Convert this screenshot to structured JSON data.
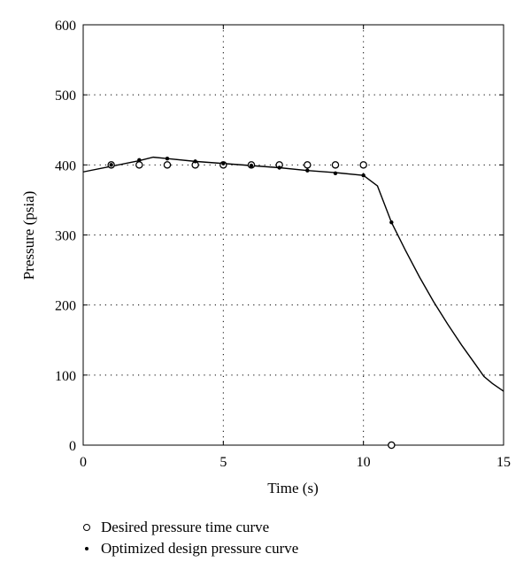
{
  "chart_data": {
    "type": "line",
    "xlabel": "Time (s)",
    "ylabel": "Pressure (psia)",
    "xlim": [
      0,
      15
    ],
    "ylim": [
      0,
      600
    ],
    "xticks": [
      0,
      5,
      10,
      15
    ],
    "yticks": [
      0,
      100,
      200,
      300,
      400,
      500,
      600
    ],
    "grid": "dotted",
    "legend_position": "bottom",
    "series": [
      {
        "name": "Desired pressure time curve",
        "marker": "open-circle",
        "x": [
          1,
          2,
          3,
          4,
          5,
          6,
          7,
          8,
          9,
          10,
          11
        ],
        "y": [
          400,
          400,
          400,
          400,
          400,
          400,
          400,
          400,
          400,
          400,
          0
        ]
      },
      {
        "name": "Optimized design pressure curve",
        "marker": "dot",
        "x": [
          1,
          2,
          3,
          4,
          5,
          6,
          7,
          8,
          9,
          10,
          11
        ],
        "y": [
          400,
          407,
          409,
          405,
          402,
          399,
          396,
          392,
          388,
          385,
          318
        ]
      },
      {
        "marker": "none",
        "x": [
          0,
          1,
          2,
          2.5,
          3,
          4,
          5,
          6,
          7,
          8,
          9,
          10,
          10.5,
          11,
          11.5,
          12,
          12.5,
          13,
          13.5,
          14,
          14.3,
          14.6,
          15
        ],
        "y": [
          390,
          398,
          406,
          411,
          409,
          405,
          402,
          399,
          396,
          392,
          389,
          385,
          370,
          318,
          278,
          240,
          205,
          173,
          143,
          115,
          98,
          88,
          77
        ]
      }
    ]
  }
}
